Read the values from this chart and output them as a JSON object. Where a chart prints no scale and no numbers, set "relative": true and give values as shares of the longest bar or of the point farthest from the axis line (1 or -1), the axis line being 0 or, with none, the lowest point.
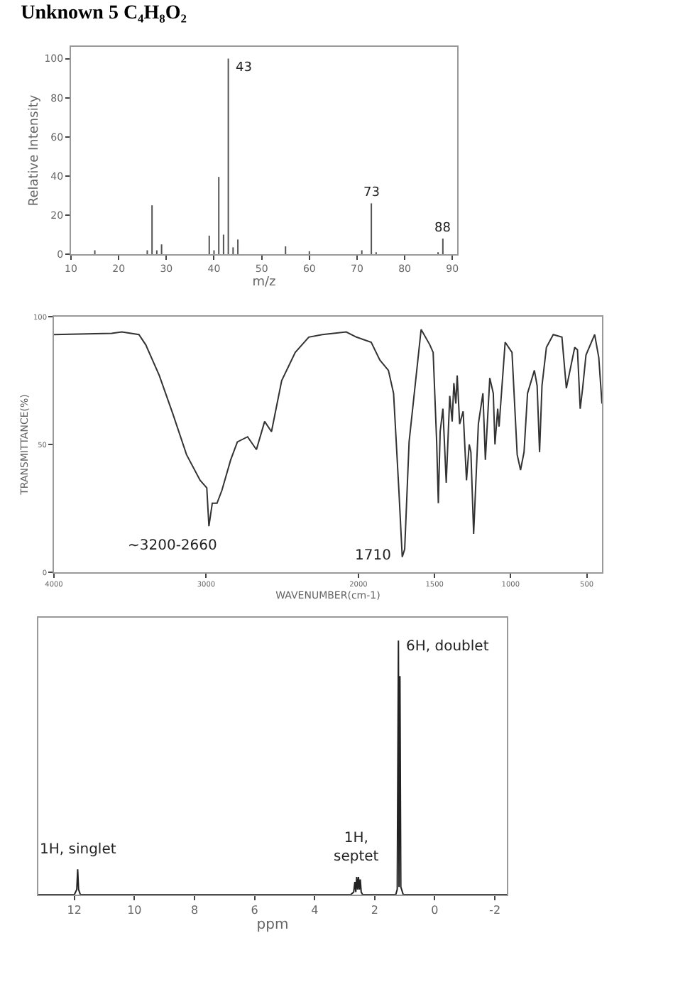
{
  "chart_data": [
    {
      "type": "bar",
      "title": "Unknown 5 C₄H₈O₂",
      "xlabel": "m/z",
      "ylabel": "Relative Intensity",
      "color": "#555555",
      "x": [
        15,
        26,
        27,
        28,
        29,
        39,
        40,
        41,
        42,
        43,
        44,
        45,
        55,
        60,
        71,
        73,
        74,
        87,
        88
      ],
      "values": [
        2,
        2,
        25,
        2,
        5,
        9.5,
        2,
        39.5,
        10,
        100,
        3.5,
        7.5,
        4,
        1.5,
        2,
        26,
        1,
        1,
        8
      ],
      "xlim": [
        10,
        91
      ],
      "xticks": [
        10,
        20,
        30,
        40,
        50,
        60,
        70,
        80,
        90
      ],
      "ylim": [
        0,
        106
      ],
      "yticks": [
        0,
        20,
        40,
        60,
        80,
        100
      ],
      "annotations": [
        {
          "text": "43",
          "x": 43,
          "y": 100
        },
        {
          "text": "73",
          "x": 73,
          "y": 26
        },
        {
          "text": "88",
          "x": 88,
          "y": 8
        }
      ]
    },
    {
      "type": "line",
      "xlabel": "WAVENUMBER(cm-1)",
      "ylabel": "TRANSMITTANCE(%)",
      "color": "#333333",
      "x": [
        4000,
        3621,
        3554,
        3442,
        3397,
        3308,
        3219,
        3129,
        3040,
        2996,
        2982,
        2960,
        2929,
        2897,
        2839,
        2795,
        2728,
        2670,
        2616,
        2571,
        2504,
        2415,
        2326,
        2237,
        2080,
        2013,
        1916,
        1859,
        1803,
        1769,
        1735,
        1712,
        1696,
        1667,
        1588,
        1531,
        1509,
        1486,
        1475,
        1463,
        1445,
        1423,
        1400,
        1384,
        1373,
        1360,
        1351,
        1335,
        1312,
        1290,
        1272,
        1261,
        1243,
        1212,
        1182,
        1166,
        1137,
        1114,
        1103,
        1085,
        1076,
        1036,
        991,
        957,
        935,
        912,
        889,
        844,
        826,
        810,
        794,
        765,
        720,
        663,
        634,
        579,
        561,
        543,
        527,
        505,
        448,
        421,
        400
      ],
      "values": [
        93,
        93.5,
        94,
        93,
        89,
        77,
        62,
        46,
        36,
        33,
        18,
        27,
        27,
        32,
        44,
        51,
        53,
        48,
        59,
        55,
        75,
        86,
        92,
        93,
        94,
        92,
        90,
        83,
        79,
        70,
        33,
        6,
        9,
        51,
        95,
        89,
        86,
        51,
        27,
        55,
        64,
        35,
        69,
        59,
        74,
        66,
        77,
        58,
        63,
        36,
        50,
        47,
        15,
        58,
        70,
        44,
        76,
        70,
        50,
        64,
        57,
        90,
        86,
        46,
        40,
        47,
        70,
        79,
        73,
        47,
        73,
        88,
        93,
        92,
        72,
        88,
        87,
        64,
        72,
        85,
        93,
        84,
        66
      ],
      "xlim": [
        4000,
        400
      ],
      "xticks": [
        4000,
        3000,
        2000,
        1500,
        1000,
        500
      ],
      "ylim": [
        0,
        100
      ],
      "yticks": [
        0,
        50,
        100
      ],
      "annotations": [
        {
          "text": "~3200-2660",
          "x": 2982,
          "y": 18
        },
        {
          "text": "1710",
          "x": 1712,
          "y": 6
        }
      ]
    },
    {
      "type": "line",
      "relative": true,
      "xlabel": "ppm",
      "color": "#222222",
      "x": [
        13.2,
        12.0,
        11.92,
        11.89,
        11.86,
        11.8,
        2.8,
        2.7,
        2.66,
        2.63,
        2.6,
        2.57,
        2.54,
        2.51,
        2.48,
        2.45,
        2.4,
        1.3,
        1.25,
        1.21,
        1.19,
        1.16,
        1.13,
        1.05,
        -2.4
      ],
      "values": [
        0,
        0,
        0.02,
        0.1,
        0.02,
        0,
        0,
        0.01,
        0.05,
        0.01,
        0.07,
        0.02,
        0.07,
        0.02,
        0.06,
        0.01,
        0,
        0,
        0.02,
        1,
        0.03,
        0.86,
        0.03,
        0,
        0
      ],
      "xlim": [
        13.2,
        -2.4
      ],
      "xticks": [
        12,
        10,
        8,
        6,
        4,
        2,
        0,
        -2
      ],
      "annotations": [
        {
          "text": "1H, singlet",
          "x": 11.89,
          "y": 0.1
        },
        {
          "text": "1H,\nseptet",
          "x": 2.6,
          "y": 0.07
        },
        {
          "text": "6H, doublet",
          "x": 1.21,
          "y": 1
        }
      ]
    }
  ]
}
